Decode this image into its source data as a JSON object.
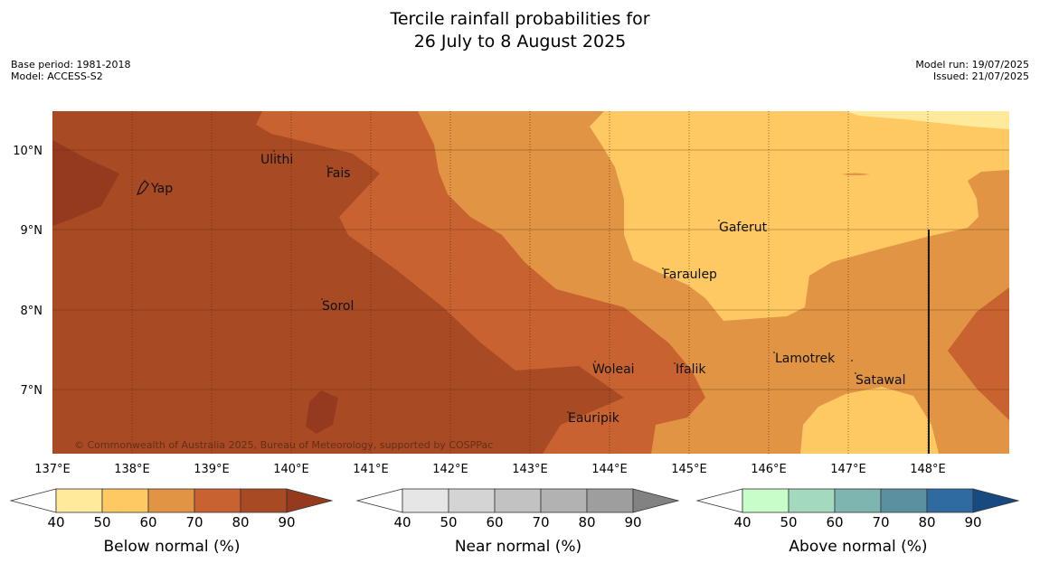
{
  "title": {
    "line1": "Tercile rainfall probabilities for",
    "line2": "26 July to 8 August 2025"
  },
  "meta_left": {
    "base_period": "Base period: 1981-2018",
    "model": "Model: ACCESS-S2"
  },
  "meta_right": {
    "model_run": "Model run: 19/07/2025",
    "issued": "Issued: 21/07/2025"
  },
  "map": {
    "lat_labels": [
      "10°N",
      "9°N",
      "8°N",
      "7°N"
    ],
    "lon_labels": [
      "137°E",
      "138°E",
      "139°E",
      "140°E",
      "141°E",
      "142°E",
      "143°E",
      "144°E",
      "145°E",
      "146°E",
      "147°E",
      "148°E"
    ],
    "places": [
      "Yap",
      "Ulithi",
      "Fais",
      "Sorol",
      "Gaferut",
      "Faraulep",
      "Woleai",
      "Ifalik",
      "Lamotrek",
      "Satawal",
      "Eauripik"
    ],
    "copyright": "© Commonwealth of Australia 2025, Bureau of Meteorology, supported by COSPPac",
    "colors": {
      "below_50": "#ffea9c",
      "below_60": "#fec962",
      "below_70": "#e09444",
      "below_80": "#c96231",
      "below_90": "#a84a24",
      "below_90plus": "#953a1f"
    }
  },
  "colorbars": [
    {
      "label": "Below normal (%)",
      "ticks": [
        "40",
        "50",
        "60",
        "70",
        "80",
        "90"
      ],
      "colors": [
        "#ffffff",
        "#ffea9c",
        "#fec962",
        "#e09444",
        "#c96231",
        "#a84a24",
        "#953a1f"
      ]
    },
    {
      "label": "Near normal (%)",
      "ticks": [
        "40",
        "50",
        "60",
        "70",
        "80",
        "90"
      ],
      "colors": [
        "#ffffff",
        "#e6e6e6",
        "#d4d4d4",
        "#c2c2c2",
        "#b2b2b2",
        "#9e9e9e",
        "#828282"
      ]
    },
    {
      "label": "Above normal (%)",
      "ticks": [
        "40",
        "50",
        "60",
        "70",
        "80",
        "90"
      ],
      "colors": [
        "#ffffff",
        "#c8fcc8",
        "#a3d9bd",
        "#7fb5b0",
        "#5b90a0",
        "#2f6ba0",
        "#174a80"
      ]
    }
  ]
}
